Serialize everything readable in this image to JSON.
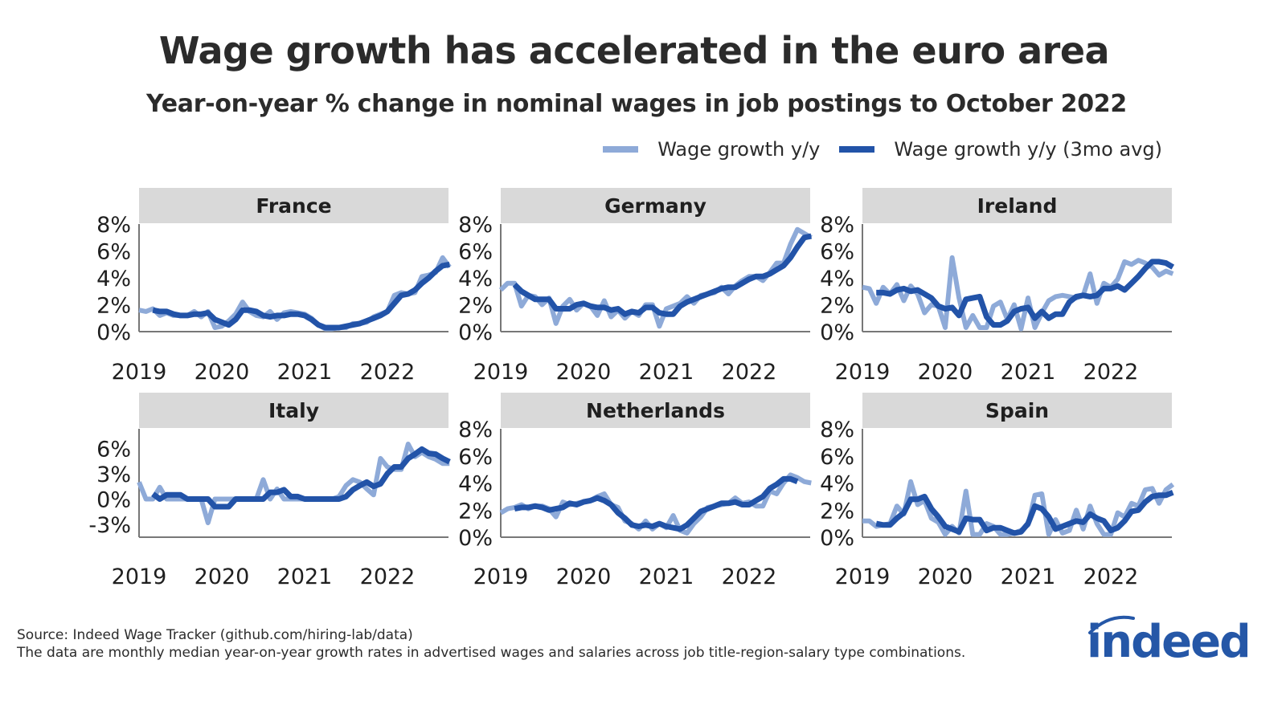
{
  "title": "Wage growth has accelerated in the euro area",
  "subtitle": "Year-on-year % change in nominal wages in job postings to October 2022",
  "legend": [
    {
      "label": "Wage growth y/y",
      "color": "#8eaad8"
    },
    {
      "label": "Wage growth y/y (3mo avg)",
      "color": "#2253a8"
    }
  ],
  "footer": {
    "source": "Source: Indeed Wage Tracker (github.com/hiring-lab/data)",
    "note": "The data are monthly median year-on-year growth rates in advertised wages and salaries across job title-region-salary type combinations."
  },
  "logo": {
    "text": "indeed",
    "color": "#2557a7"
  },
  "chart_data": {
    "type": "line",
    "x_start": "2019-01",
    "x_end": "2022-10",
    "x_ticks": [
      "2019",
      "2020",
      "2021",
      "2022"
    ],
    "panels": [
      {
        "name": "France",
        "yticks": [
          0,
          2,
          4,
          6,
          8
        ],
        "ylim": [
          0,
          8
        ],
        "series": [
          {
            "name": "Wage growth y/y",
            "values": [
              1.6,
              1.5,
              1.7,
              1.2,
              1.4,
              1.2,
              1.2,
              1.2,
              1.5,
              1.1,
              1.5,
              0.3,
              0.4,
              0.8,
              1.3,
              2.2,
              1.5,
              1.2,
              1.1,
              1.5,
              0.9,
              1.4,
              1.5,
              1.4,
              1.3,
              1.0,
              0.5,
              0.2,
              0.2,
              0.3,
              0.3,
              0.6,
              0.6,
              0.7,
              1.1,
              1.3,
              1.5,
              2.7,
              2.9,
              2.8,
              2.9,
              4.1,
              4.2,
              4.4,
              5.5,
              4.8
            ]
          },
          {
            "name": "Wage growth y/y (3mo avg)",
            "values": [
              null,
              null,
              1.6,
              1.5,
              1.5,
              1.3,
              1.2,
              1.2,
              1.3,
              1.3,
              1.4,
              0.9,
              0.7,
              0.5,
              0.9,
              1.6,
              1.6,
              1.5,
              1.2,
              1.1,
              1.2,
              1.2,
              1.3,
              1.3,
              1.2,
              0.9,
              0.5,
              0.3,
              0.3,
              0.3,
              0.4,
              0.5,
              0.6,
              0.8,
              1.0,
              1.2,
              1.5,
              2.1,
              2.7,
              2.8,
              3.1,
              3.6,
              4.0,
              4.5,
              4.9,
              5.0
            ]
          }
        ]
      },
      {
        "name": "Germany",
        "yticks": [
          0,
          2,
          4,
          6,
          8
        ],
        "ylim": [
          0,
          8
        ],
        "series": [
          {
            "name": "Wage growth y/y",
            "values": [
              3.1,
              3.6,
              3.6,
              1.9,
              2.7,
              2.6,
              2.0,
              2.5,
              0.6,
              1.9,
              2.4,
              1.6,
              2.1,
              1.9,
              1.2,
              2.3,
              1.1,
              1.6,
              1.0,
              1.5,
              1.2,
              2.0,
              2.0,
              0.4,
              1.7,
              1.9,
              2.1,
              2.6,
              2.1,
              2.7,
              2.8,
              2.9,
              3.3,
              2.8,
              3.4,
              3.8,
              4.1,
              4.1,
              3.8,
              4.4,
              5.1,
              5.1,
              6.5,
              7.6,
              7.3,
              7.0
            ]
          },
          {
            "name": "Wage growth y/y (3mo avg)",
            "values": [
              null,
              null,
              3.5,
              3.0,
              2.7,
              2.4,
              2.4,
              2.4,
              1.7,
              1.7,
              1.7,
              2.0,
              2.1,
              1.9,
              1.8,
              1.8,
              1.6,
              1.7,
              1.3,
              1.5,
              1.4,
              1.8,
              1.8,
              1.4,
              1.3,
              1.3,
              1.9,
              2.2,
              2.4,
              2.6,
              2.8,
              3.0,
              3.2,
              3.3,
              3.3,
              3.6,
              3.9,
              4.1,
              4.1,
              4.3,
              4.6,
              4.9,
              5.5,
              6.3,
              7.0,
              7.1
            ]
          }
        ]
      },
      {
        "name": "Ireland",
        "yticks": [
          0,
          2,
          4,
          6,
          8
        ],
        "ylim": [
          0,
          8
        ],
        "series": [
          {
            "name": "Wage growth y/y",
            "values": [
              3.3,
              3.2,
              2.1,
              3.3,
              2.8,
              3.5,
              2.3,
              3.4,
              2.8,
              1.4,
              2.0,
              1.9,
              0.3,
              5.5,
              2.5,
              0.3,
              1.2,
              0.3,
              0.3,
              1.9,
              2.2,
              0.9,
              2.0,
              0.2,
              2.5,
              0.3,
              1.4,
              2.3,
              2.6,
              2.7,
              2.6,
              2.5,
              2.7,
              4.3,
              2.1,
              3.6,
              3.3,
              3.9,
              5.2,
              5.0,
              5.3,
              5.1,
              4.8,
              4.2,
              4.5,
              4.3
            ]
          },
          {
            "name": "Wage growth y/y (3mo avg)",
            "values": [
              null,
              null,
              2.9,
              2.9,
              2.8,
              3.1,
              3.2,
              3.0,
              3.1,
              2.8,
              2.5,
              1.9,
              1.7,
              1.8,
              1.2,
              2.4,
              2.5,
              2.6,
              1.1,
              0.5,
              0.5,
              0.8,
              1.5,
              1.7,
              1.8,
              1.0,
              1.5,
              1.0,
              1.3,
              1.3,
              2.2,
              2.6,
              2.7,
              2.6,
              2.7,
              3.2,
              3.2,
              3.4,
              3.1,
              3.6,
              4.1,
              4.7,
              5.2,
              5.2,
              5.1,
              4.8
            ]
          }
        ]
      },
      {
        "name": "Italy",
        "yticks": [
          -3,
          0,
          3,
          6
        ],
        "ylim": [
          -4.5,
          8.3
        ],
        "series": [
          {
            "name": "Wage growth y/y",
            "values": [
              2.0,
              0.0,
              0.0,
              1.4,
              0.0,
              0.0,
              0.0,
              0.0,
              0.0,
              0.0,
              -2.8,
              0.0,
              0.0,
              0.0,
              0.0,
              0.0,
              0.0,
              0.0,
              2.3,
              0.0,
              1.2,
              0.0,
              0.0,
              0.0,
              0.0,
              0.0,
              0.0,
              0.0,
              0.0,
              0.3,
              1.6,
              2.3,
              2.0,
              1.2,
              0.5,
              4.8,
              3.8,
              3.5,
              3.5,
              6.5,
              5.0,
              5.5,
              5.0,
              4.7,
              4.2,
              4.2
            ]
          },
          {
            "name": "Wage growth y/y (3mo avg)",
            "values": [
              null,
              null,
              0.6,
              0.0,
              0.5,
              0.5,
              0.5,
              0.0,
              0.0,
              0.0,
              0.0,
              -0.9,
              -0.9,
              -0.9,
              0.0,
              0.0,
              0.0,
              0.0,
              0.0,
              0.8,
              0.8,
              1.1,
              0.3,
              0.3,
              0.0,
              0.0,
              0.0,
              0.0,
              0.0,
              0.0,
              0.3,
              1.1,
              1.6,
              2.0,
              1.5,
              1.8,
              3.0,
              3.8,
              3.8,
              4.8,
              5.3,
              5.9,
              5.4,
              5.3,
              4.8,
              4.4
            ]
          }
        ]
      },
      {
        "name": "Netherlands",
        "yticks": [
          0,
          2,
          4,
          6,
          8
        ],
        "ylim": [
          0,
          8
        ],
        "series": [
          {
            "name": "Wage growth y/y",
            "values": [
              1.8,
              2.1,
              2.2,
              2.4,
              2.1,
              2.3,
              2.3,
              2.1,
              1.5,
              2.6,
              2.4,
              2.5,
              2.6,
              2.7,
              3.0,
              3.2,
              2.4,
              2.2,
              1.2,
              1.0,
              0.6,
              1.2,
              0.6,
              1.0,
              0.7,
              1.6,
              0.5,
              0.3,
              1.0,
              1.5,
              2.2,
              2.3,
              2.4,
              2.5,
              2.9,
              2.5,
              2.6,
              2.3,
              2.3,
              3.4,
              3.2,
              4.0,
              4.6,
              4.4,
              4.1,
              4.0
            ]
          },
          {
            "name": "Wage growth y/y (3mo avg)",
            "values": [
              null,
              null,
              2.1,
              2.2,
              2.2,
              2.3,
              2.2,
              2.0,
              2.1,
              2.2,
              2.5,
              2.4,
              2.6,
              2.7,
              2.9,
              2.7,
              2.4,
              1.8,
              1.4,
              0.9,
              0.8,
              0.9,
              0.8,
              1.0,
              0.8,
              0.7,
              0.6,
              0.9,
              1.4,
              1.9,
              2.1,
              2.3,
              2.5,
              2.5,
              2.6,
              2.4,
              2.4,
              2.7,
              3.0,
              3.6,
              3.9,
              4.3,
              4.3,
              4.1,
              null,
              null
            ]
          }
        ]
      },
      {
        "name": "Spain",
        "yticks": [
          0,
          2,
          4,
          6,
          8
        ],
        "ylim": [
          0,
          8
        ],
        "series": [
          {
            "name": "Wage growth y/y",
            "values": [
              1.2,
              1.2,
              0.8,
              0.9,
              1.0,
              2.3,
              1.7,
              4.1,
              2.4,
              2.7,
              1.4,
              1.1,
              0.2,
              0.8,
              0.3,
              3.4,
              0.2,
              0.2,
              1.0,
              0.8,
              0.2,
              0.2,
              0.3,
              0.5,
              0.9,
              3.1,
              3.2,
              0.2,
              1.3,
              0.3,
              0.5,
              2.0,
              0.6,
              2.3,
              1.0,
              0.2,
              0.2,
              1.8,
              1.5,
              2.5,
              2.3,
              3.5,
              3.6,
              2.5,
              3.5,
              3.9
            ]
          },
          {
            "name": "Wage growth y/y (3mo avg)",
            "values": [
              null,
              null,
              1.0,
              0.9,
              0.9,
              1.4,
              1.8,
              2.8,
              2.8,
              3.0,
              2.1,
              1.5,
              0.8,
              0.6,
              0.4,
              1.4,
              1.3,
              1.3,
              0.5,
              0.7,
              0.7,
              0.5,
              0.3,
              0.4,
              1.0,
              2.3,
              2.1,
              1.5,
              0.6,
              0.8,
              1.0,
              1.2,
              1.1,
              1.7,
              1.4,
              1.2,
              0.5,
              0.7,
              1.2,
              1.9,
              2.0,
              2.6,
              3.0,
              3.1,
              3.1,
              3.3
            ]
          }
        ]
      }
    ]
  }
}
